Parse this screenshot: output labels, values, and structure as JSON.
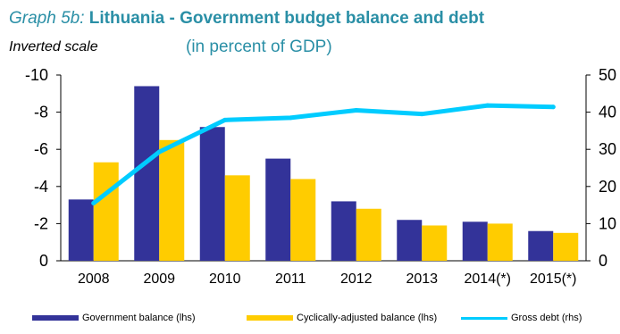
{
  "header": {
    "title_prefix": "Graph 5b:",
    "title_main": "Lithuania - Government budget balance and debt",
    "subnote": "Inverted scale",
    "units": "(in percent of GDP)"
  },
  "legend": {
    "gov_balance": "Government balance (lhs)",
    "cyc_balance": "Cyclically-adjusted balance (lhs)",
    "gross_debt": "Gross debt (rhs)"
  },
  "colors": {
    "gov_balance": "#333399",
    "cyc_balance": "#ffcc00",
    "gross_debt": "#00ccff",
    "title": "#2a8fa6"
  },
  "chart_data": {
    "type": "bar",
    "categories": [
      "2008",
      "2009",
      "2010",
      "2011",
      "2012",
      "2013",
      "2014(*)",
      "2015(*)"
    ],
    "series": [
      {
        "name": "Government balance (lhs)",
        "type": "bar",
        "axis": "left",
        "values": [
          -3.3,
          -9.4,
          -7.2,
          -5.5,
          -3.2,
          -2.2,
          -2.1,
          -1.6
        ]
      },
      {
        "name": "Cyclically-adjusted balance (lhs)",
        "type": "bar",
        "axis": "left",
        "values": [
          -5.3,
          -6.5,
          -4.6,
          -4.4,
          -2.8,
          -1.9,
          -2.0,
          -1.5
        ]
      },
      {
        "name": "Gross debt (rhs)",
        "type": "line",
        "axis": "right",
        "values": [
          15.5,
          29.3,
          37.9,
          38.5,
          40.5,
          39.5,
          41.8,
          41.4
        ]
      }
    ],
    "left_axis": {
      "ylim": [
        -10,
        0
      ],
      "inverted": true,
      "ticks": [
        -10,
        -8,
        -6,
        -4,
        -2,
        0
      ],
      "tick_labels": [
        "-10",
        "-8",
        "-6",
        "-4",
        "-2",
        "0"
      ]
    },
    "right_axis": {
      "ylim": [
        0,
        50
      ],
      "ticks": [
        0,
        10,
        20,
        30,
        40,
        50
      ],
      "tick_labels": [
        "0",
        "10",
        "20",
        "30",
        "40",
        "50"
      ]
    },
    "grid": false,
    "legend_position": "bottom"
  }
}
